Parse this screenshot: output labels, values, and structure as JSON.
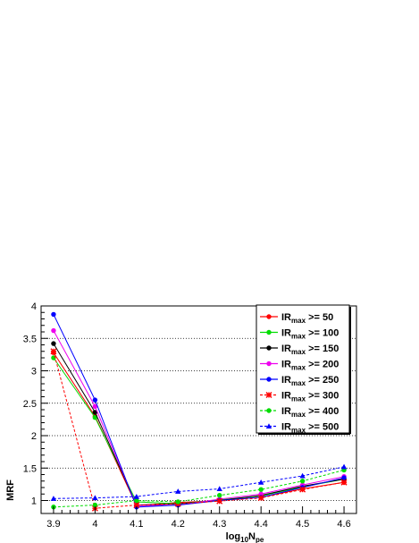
{
  "chart_data": {
    "type": "line",
    "x": [
      3.9,
      4.0,
      4.1,
      4.2,
      4.3,
      4.4,
      4.5,
      4.6
    ],
    "x_tick_labels": [
      "3.9",
      "4",
      "4.1",
      "4.2",
      "4.3",
      "4.4",
      "4.5",
      "4.6"
    ],
    "y_tick_labels": [
      "1",
      "1.5",
      "2",
      "2.5",
      "3",
      "3.5",
      "4"
    ],
    "y_ticks": [
      1,
      1.5,
      2,
      2.5,
      3,
      3.5,
      4
    ],
    "xlim": [
      3.87,
      4.63
    ],
    "ylim": [
      0.8,
      4.0
    ],
    "xlabel": "log₁₀Nₚₑ",
    "xlabel_main": "log",
    "xlabel_sub1": "10",
    "xlabel_main2": "N",
    "xlabel_sub2": "pe",
    "ylabel": "MRF",
    "grid": "horizontal dotted",
    "legend_position": "top-right",
    "legend_prefix": "IR",
    "legend_sub": "max",
    "series": [
      {
        "name": "IRmax >= 50",
        "threshold": "50",
        "color": "#ff0000",
        "dash": "solid",
        "marker": "circle",
        "values": [
          3.28,
          2.3,
          0.92,
          0.97,
          1.0,
          1.05,
          1.18,
          1.28
        ]
      },
      {
        "name": "IRmax >= 100",
        "threshold": "100",
        "color": "#00dd00",
        "dash": "solid",
        "marker": "circle",
        "values": [
          3.2,
          2.28,
          0.98,
          0.95,
          1.01,
          1.07,
          1.21,
          1.33
        ]
      },
      {
        "name": "IRmax >= 150",
        "threshold": "150",
        "color": "#000000",
        "dash": "solid",
        "marker": "circle",
        "values": [
          3.42,
          2.36,
          0.93,
          0.95,
          1.0,
          1.08,
          1.22,
          1.33
        ]
      },
      {
        "name": "IRmax >= 200",
        "threshold": "200",
        "color": "#ee00ee",
        "dash": "solid",
        "marker": "circle",
        "values": [
          3.62,
          2.45,
          0.92,
          0.93,
          1.02,
          1.1,
          1.24,
          1.37
        ]
      },
      {
        "name": "IRmax >= 250",
        "threshold": "250",
        "color": "#0000ff",
        "dash": "solid",
        "marker": "circle",
        "values": [
          3.87,
          2.55,
          0.9,
          0.93,
          1.0,
          1.05,
          1.2,
          1.35
        ]
      },
      {
        "name": "IRmax >= 300",
        "threshold": "300",
        "color": "#ff0000",
        "dash": "dashed",
        "marker": "star",
        "values": [
          3.3,
          0.88,
          0.93,
          0.95,
          0.99,
          1.04,
          1.17,
          1.28
        ]
      },
      {
        "name": "IRmax >= 400",
        "threshold": "400",
        "color": "#00dd00",
        "dash": "dashed",
        "marker": "circle",
        "values": [
          0.9,
          0.93,
          1.0,
          0.98,
          1.08,
          1.17,
          1.3,
          1.47
        ]
      },
      {
        "name": "IRmax >= 500",
        "threshold": "500",
        "color": "#0000ff",
        "dash": "dashed",
        "marker": "triangle",
        "values": [
          1.03,
          1.04,
          1.06,
          1.14,
          1.18,
          1.28,
          1.38,
          1.52
        ]
      }
    ]
  }
}
